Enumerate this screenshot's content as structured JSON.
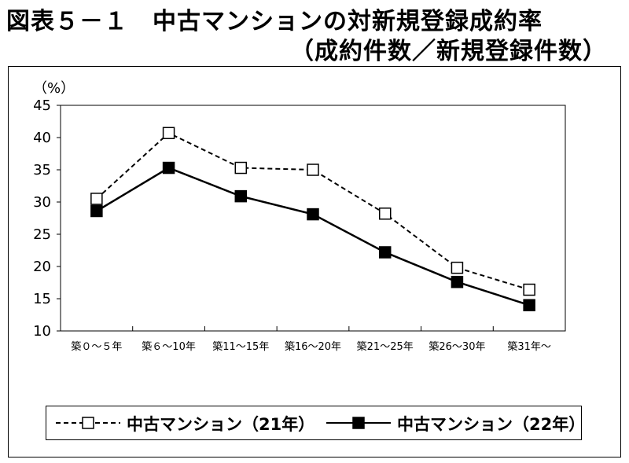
{
  "title": {
    "line1": "図表５－１　中古マンションの対新規登録成約率",
    "line2": "（成約件数／新規登録件数）"
  },
  "chart_data": {
    "type": "line",
    "ylabel": "（%）",
    "ylim": [
      10,
      45
    ],
    "yticks": [
      10,
      15,
      20,
      25,
      30,
      35,
      40,
      45
    ],
    "categories": [
      "築０～５年",
      "築６～10年",
      "築11～15年",
      "築16～20年",
      "築21～25年",
      "築26～30年",
      "築31年～"
    ],
    "series": [
      {
        "name": "中古マンション（21年）",
        "style": "dashed",
        "marker": "open-square",
        "values": [
          30.5,
          40.7,
          35.3,
          35.0,
          28.2,
          19.8,
          16.4
        ]
      },
      {
        "name": "中古マンション（22年）",
        "style": "solid",
        "marker": "filled-square",
        "values": [
          28.6,
          35.3,
          30.9,
          28.1,
          22.2,
          17.6,
          14.0
        ]
      }
    ]
  },
  "legend": {
    "series1_label": "中古マンション（21年）",
    "series2_label": "中古マンション（22年）"
  },
  "colors": {
    "line": "#000000",
    "background": "#ffffff"
  }
}
